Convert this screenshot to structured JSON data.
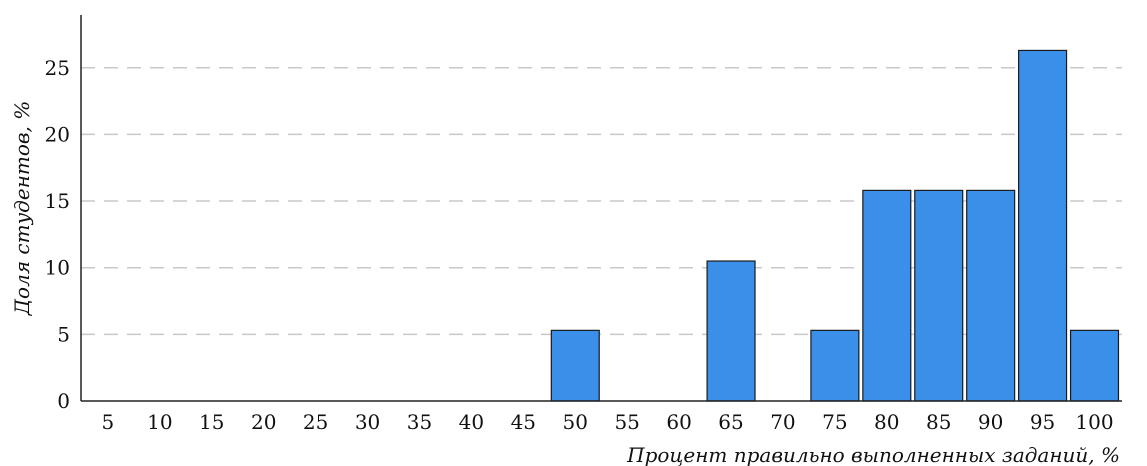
{
  "chart_data": {
    "type": "bar",
    "xlabel": "Процент правильно выполненных заданий, %",
    "ylabel": "Доля студентов, %",
    "x_ticks": [
      "5",
      "10",
      "15",
      "20",
      "25",
      "30",
      "35",
      "40",
      "45",
      "50",
      "55",
      "60",
      "65",
      "70",
      "75",
      "80",
      "85",
      "90",
      "95",
      "100"
    ],
    "y_ticks": [
      "0",
      "5",
      "10",
      "15",
      "20",
      "25"
    ],
    "ylim": [
      0,
      29
    ],
    "grid": "horizontal-dashed",
    "bar_color": "#3a8fe8",
    "bins": [
      {
        "from": 45,
        "to": 50,
        "value": 5.3
      },
      {
        "from": 60,
        "to": 65,
        "value": 10.5
      },
      {
        "from": 70,
        "to": 75,
        "value": 5.3
      },
      {
        "from": 75,
        "to": 80,
        "value": 15.8
      },
      {
        "from": 80,
        "to": 85,
        "value": 15.8
      },
      {
        "from": 85,
        "to": 90,
        "value": 15.8
      },
      {
        "from": 90,
        "to": 95,
        "value": 26.3
      },
      {
        "from": 95,
        "to": 100,
        "value": 5.3
      }
    ]
  }
}
